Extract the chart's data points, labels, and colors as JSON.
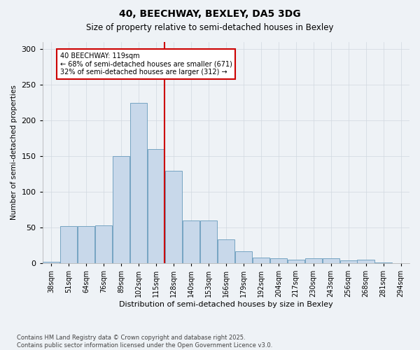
{
  "title": "40, BEECHWAY, BEXLEY, DA5 3DG",
  "subtitle": "Size of property relative to semi-detached houses in Bexley",
  "xlabel": "Distribution of semi-detached houses by size in Bexley",
  "ylabel": "Number of semi-detached properties",
  "footer_line1": "Contains HM Land Registry data © Crown copyright and database right 2025.",
  "footer_line2": "Contains public sector information licensed under the Open Government Licence v3.0.",
  "annotation_title": "40 BEECHWAY: 119sqm",
  "annotation_line1": "← 68% of semi-detached houses are smaller (671)",
  "annotation_line2": "32% of semi-detached houses are larger (312) →",
  "property_line_x": 6,
  "categories": [
    "38sqm",
    "51sqm",
    "64sqm",
    "76sqm",
    "89sqm",
    "102sqm",
    "115sqm",
    "128sqm",
    "140sqm",
    "153sqm",
    "166sqm",
    "179sqm",
    "192sqm",
    "204sqm",
    "217sqm",
    "230sqm",
    "243sqm",
    "256sqm",
    "268sqm",
    "281sqm",
    "294sqm"
  ],
  "values": [
    2,
    52,
    52,
    53,
    150,
    225,
    160,
    130,
    60,
    60,
    33,
    17,
    8,
    7,
    5,
    7,
    7,
    4,
    5,
    1,
    0
  ],
  "bar_color": "#c8d8ea",
  "bar_edge_color": "#6699bb",
  "grid_color": "#d0d8e0",
  "background_color": "#eef2f6",
  "vline_color": "#cc0000",
  "annotation_box_color": "#cc0000",
  "ylim": [
    0,
    310
  ],
  "yticks": [
    0,
    50,
    100,
    150,
    200,
    250,
    300
  ]
}
